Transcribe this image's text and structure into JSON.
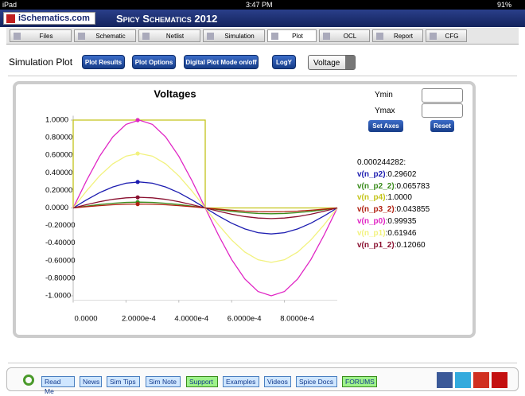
{
  "status_bar": {
    "device": "iPad",
    "time": "3:47 PM",
    "battery": "91%"
  },
  "header": {
    "logo": "iSchematics.com",
    "title": "Spicy Schematics 2012"
  },
  "tabs": [
    "Files",
    "Schematic",
    "Netlist",
    "Simulation",
    "Plot",
    "OCL",
    "Report",
    "CFG"
  ],
  "toolbar": {
    "label": "Simulation Plot",
    "buttons": [
      "Plot Results",
      "Plot Options",
      "Digital Plot Mode on/off",
      "LogY"
    ],
    "select": "Voltage"
  },
  "axes_controls": {
    "ymin_label": "Ymin",
    "ymax_label": "Ymax",
    "set_button": "Set Axes",
    "reset_button": "Reset"
  },
  "chart_data": {
    "type": "line",
    "title": "Voltages",
    "x": [
      0,
      5e-05,
      0.0001,
      0.00015,
      0.0002,
      0.00025,
      0.0003,
      0.00035,
      0.0004,
      0.00045,
      0.0005,
      0.00055,
      0.0006,
      0.00065,
      0.0007,
      0.00075,
      0.0008,
      0.00085,
      0.0009,
      0.00095,
      0.001
    ],
    "xlim": [
      0,
      0.001
    ],
    "ylim": [
      -1.05,
      1.05
    ],
    "xticks": [
      {
        "value": 0,
        "label": "0.0000"
      },
      {
        "value": 0.0002,
        "label": "2.0000e-4"
      },
      {
        "value": 0.0004,
        "label": "4.0000e-4"
      },
      {
        "value": 0.0006,
        "label": "6.0000e-4"
      },
      {
        "value": 0.0008,
        "label": "8.0000e-4"
      }
    ],
    "yticks": [
      {
        "value": 1,
        "label": "1.0000"
      },
      {
        "value": 0.8,
        "label": "0.80000"
      },
      {
        "value": 0.6,
        "label": "0.60000"
      },
      {
        "value": 0.4,
        "label": "0.40000"
      },
      {
        "value": 0.2,
        "label": "0.20000"
      },
      {
        "value": 0,
        "label": "0.0000"
      },
      {
        "value": -0.2,
        "label": "-0.20000"
      },
      {
        "value": -0.4,
        "label": "-0.40000"
      },
      {
        "value": -0.6,
        "label": "-0.60000"
      },
      {
        "value": -0.8,
        "label": "-0.80000"
      },
      {
        "value": -1,
        "label": "-1.0000"
      }
    ],
    "grid": false,
    "cursor_x": 0.000244282,
    "readout_separator": ":",
    "series": [
      {
        "name": "v(n_p2)",
        "color": "#1c1cb0",
        "cursor_value": 0.29602,
        "cursor_label": "0.29602",
        "values": [
          0,
          0.091,
          0.174,
          0.239,
          0.282,
          0.296,
          0.282,
          0.239,
          0.174,
          0.091,
          0,
          -0.091,
          -0.174,
          -0.239,
          -0.282,
          -0.296,
          -0.282,
          -0.239,
          -0.174,
          -0.091,
          0
        ]
      },
      {
        "name": "v(n_p2_2)",
        "color": "#3a8c1c",
        "cursor_value": 0.065783,
        "cursor_label": "0.065783",
        "values": [
          0,
          0.02,
          0.039,
          0.053,
          0.063,
          0.066,
          0.063,
          0.053,
          0.039,
          0.02,
          0,
          -0.02,
          -0.039,
          -0.053,
          -0.063,
          -0.066,
          -0.063,
          -0.053,
          -0.039,
          -0.02,
          0
        ]
      },
      {
        "name": "v(n_p4)",
        "color": "#c4c41a",
        "cursor_value": 1,
        "cursor_label": "1.0000",
        "x": [
          0,
          0,
          0.0005,
          0.0005,
          0.001
        ],
        "values": [
          0,
          1,
          1,
          0,
          0
        ]
      },
      {
        "name": "v(n_p3_2)",
        "color": "#b02010",
        "cursor_value": 0.043855,
        "cursor_label": "0.043855",
        "values": [
          0,
          0.014,
          0.026,
          0.036,
          0.042,
          0.044,
          0.042,
          0.036,
          0.026,
          0.014,
          0,
          -0.014,
          -0.026,
          -0.036,
          -0.042,
          -0.044,
          -0.042,
          -0.036,
          -0.026,
          -0.014,
          0
        ]
      },
      {
        "name": "v(n_p0)",
        "color": "#e024c4",
        "cursor_value": 0.99935,
        "cursor_label": "0.99935",
        "values": [
          0,
          0.309,
          0.588,
          0.809,
          0.951,
          1,
          0.951,
          0.809,
          0.588,
          0.309,
          0,
          -0.309,
          -0.588,
          -0.809,
          -0.951,
          -1,
          -0.951,
          -0.809,
          -0.588,
          -0.309,
          0
        ]
      },
      {
        "name": "v(n_p1)",
        "color": "#f2f27e",
        "cursor_value": 0.61946,
        "cursor_label": "0.61946",
        "values": [
          0,
          0.192,
          0.365,
          0.502,
          0.59,
          0.62,
          0.59,
          0.502,
          0.365,
          0.192,
          0,
          -0.192,
          -0.365,
          -0.502,
          -0.59,
          -0.62,
          -0.59,
          -0.502,
          -0.365,
          -0.192,
          0
        ]
      },
      {
        "name": "v(n_p1_2)",
        "color": "#8a1030",
        "cursor_value": 0.1206,
        "cursor_label": "0.12060",
        "values": [
          0,
          0.037,
          0.071,
          0.098,
          0.115,
          0.121,
          0.115,
          0.098,
          0.071,
          0.037,
          0,
          -0.037,
          -0.071,
          -0.098,
          -0.115,
          -0.121,
          -0.115,
          -0.098,
          -0.071,
          -0.037,
          0
        ]
      }
    ]
  },
  "footer": {
    "links": [
      "Read Me",
      "News",
      "Sim Tips",
      "Sim Note",
      "Support",
      "Examples",
      "Videos",
      "Spice Docs",
      "FORUMS"
    ]
  }
}
